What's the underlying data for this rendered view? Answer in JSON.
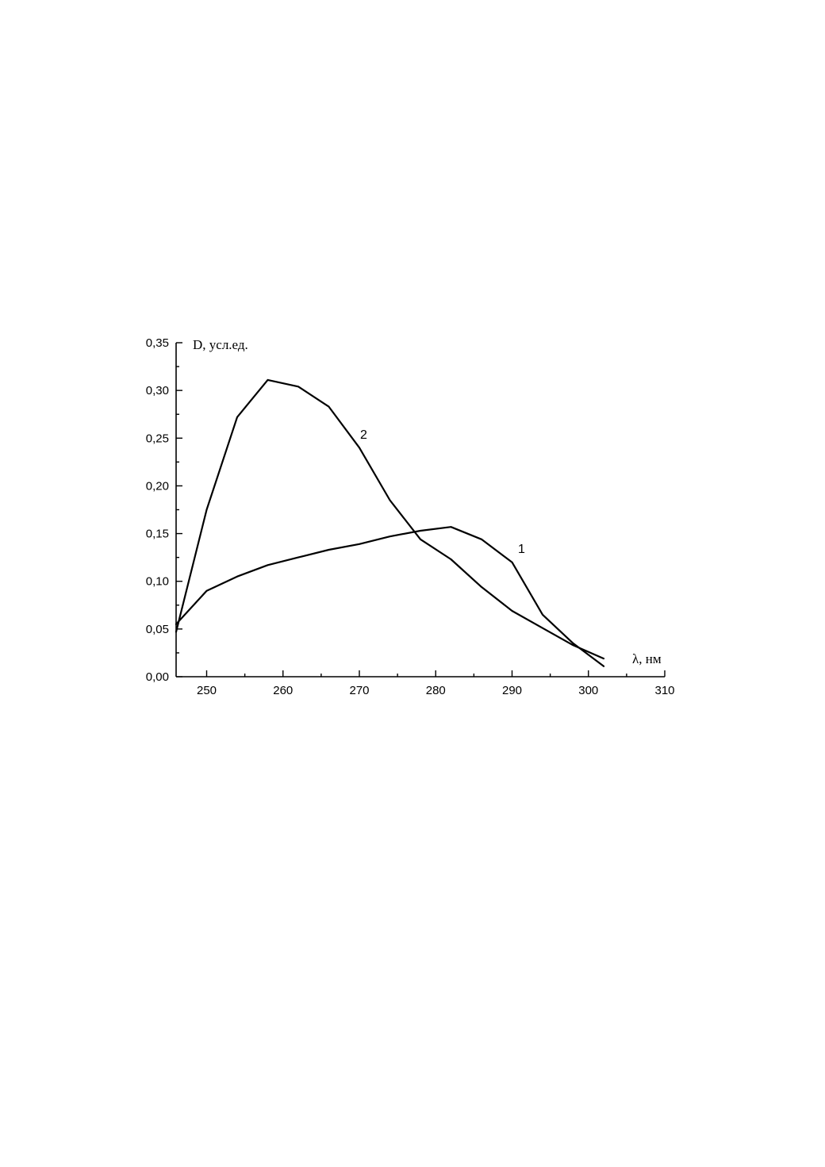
{
  "chart_data": {
    "type": "line",
    "xlabel": "λ, нм",
    "ylabel": "D, усл.ед.",
    "xlim": [
      246,
      310
    ],
    "ylim": [
      0.0,
      0.35
    ],
    "x_ticks": [
      250,
      260,
      270,
      280,
      290,
      300,
      310
    ],
    "x_tick_labels": [
      "250",
      "260",
      "270",
      "280",
      "290",
      "300",
      "310"
    ],
    "y_ticks": [
      0.0,
      0.05,
      0.1,
      0.15,
      0.2,
      0.25,
      0.3,
      0.35
    ],
    "y_tick_labels": [
      "0,00",
      "0,05",
      "0,10",
      "0,15",
      "0,20",
      "0,25",
      "0,30",
      "0,35"
    ],
    "grid": false,
    "legend": "none",
    "series": [
      {
        "label": "1",
        "x": [
          246,
          250,
          254,
          258,
          262,
          266,
          270,
          274,
          278,
          282,
          286,
          290,
          294,
          298,
          302
        ],
        "values": [
          0.055,
          0.09,
          0.105,
          0.117,
          0.125,
          0.133,
          0.139,
          0.147,
          0.153,
          0.157,
          0.144,
          0.12,
          0.065,
          0.035,
          0.011
        ]
      },
      {
        "label": "2",
        "x": [
          246,
          250,
          254,
          258,
          262,
          266,
          270,
          274,
          278,
          282,
          286,
          290,
          294,
          298,
          302
        ],
        "values": [
          0.047,
          0.175,
          0.272,
          0.311,
          0.304,
          0.283,
          0.24,
          0.185,
          0.144,
          0.123,
          0.094,
          0.069,
          0.051,
          0.033,
          0.019
        ]
      }
    ]
  }
}
